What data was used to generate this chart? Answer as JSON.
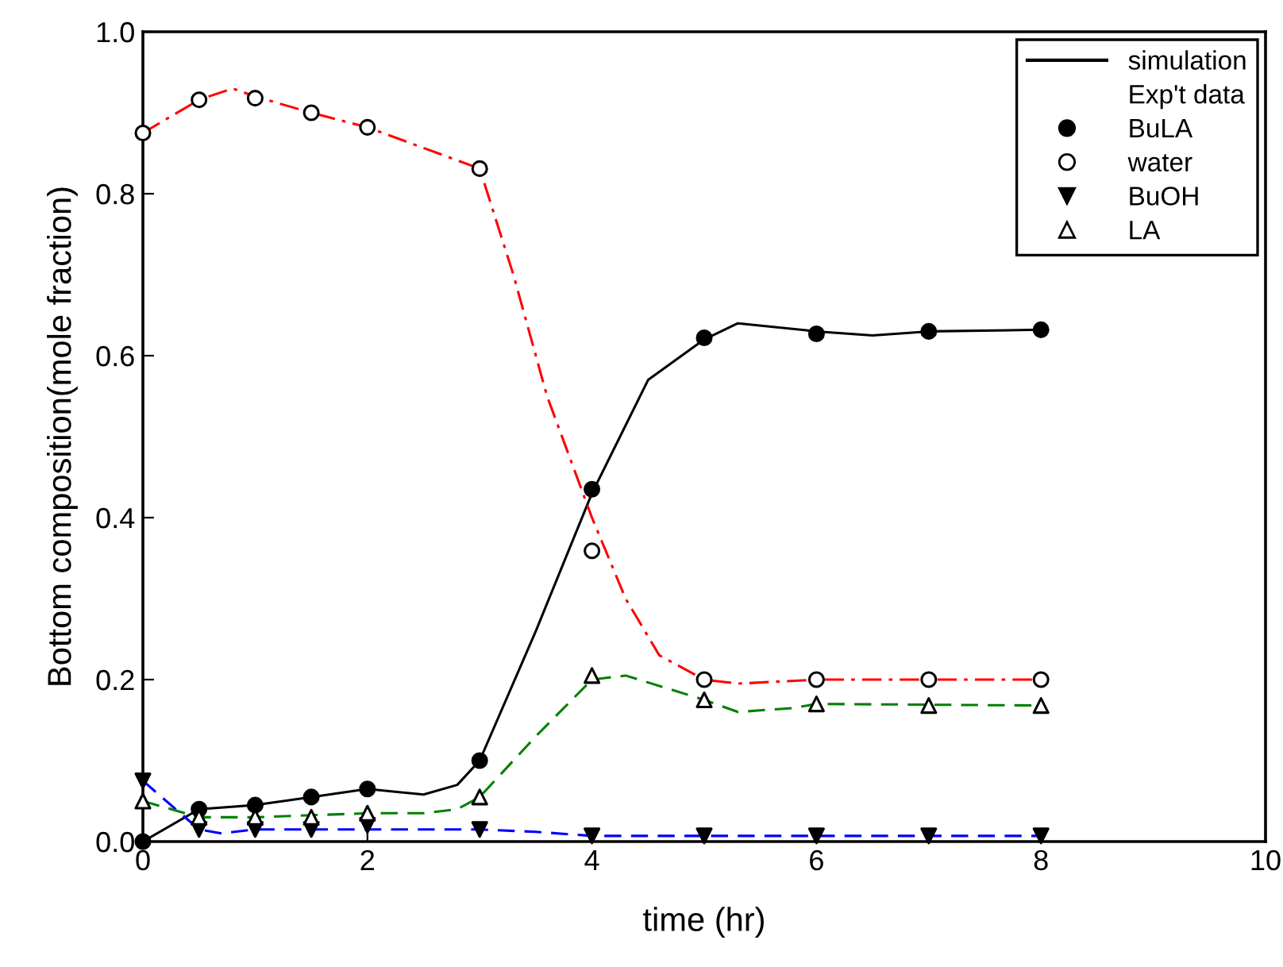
{
  "chart_data": {
    "type": "scatter",
    "xlabel": "time (hr)",
    "ylabel": "Bottom composition(mole fraction)",
    "xlim": [
      0,
      10
    ],
    "xticks": [
      0,
      2,
      4,
      6,
      8,
      10
    ],
    "ylim": [
      0,
      1.0
    ],
    "yticks": [
      {
        "value": 0,
        "label": "0.0"
      },
      {
        "value": 0.2,
        "label": "0.2"
      },
      {
        "value": 0.4,
        "label": "0.4"
      },
      {
        "value": 0.6,
        "label": "0.6"
      },
      {
        "value": 0.8,
        "label": "0.8"
      },
      {
        "value": 1.0,
        "label": "1.0"
      }
    ],
    "grid": false,
    "legend": "top right",
    "annotations": [
      "Exp't data"
    ],
    "series": [
      {
        "type": "line",
        "name": "simulation",
        "color": "#000000",
        "line_style": "solid",
        "marker": "none",
        "x": [
          0,
          0.5,
          1,
          1.5,
          2,
          2.5,
          2.8,
          3,
          3.5,
          4,
          4.5,
          5,
          5.3,
          6,
          6.5,
          7,
          8
        ],
        "values": [
          0,
          0.04,
          0.045,
          0.055,
          0.065,
          0.058,
          0.07,
          0.1,
          0.26,
          0.43,
          0.57,
          0.62,
          0.64,
          0.63,
          0.625,
          0.63,
          0.632
        ]
      },
      {
        "type": "line",
        "color": "#ff0000",
        "line_style": "dashdot",
        "marker": "none",
        "x": [
          0,
          0.5,
          0.8,
          1,
          1.5,
          2,
          3,
          3.3,
          3.6,
          4,
          4.3,
          4.6,
          5,
          5.3,
          6,
          7,
          8
        ],
        "values": [
          0.875,
          0.916,
          0.93,
          0.92,
          0.9,
          0.882,
          0.831,
          0.7,
          0.55,
          0.4,
          0.3,
          0.23,
          0.2,
          0.195,
          0.2,
          0.2,
          0.2
        ]
      },
      {
        "type": "line",
        "color": "#0000ff",
        "line_style": "dashed",
        "marker": "none",
        "x": [
          0,
          0.5,
          0.7,
          1,
          3,
          3.5,
          4,
          8
        ],
        "values": [
          0.075,
          0.015,
          0.01,
          0.015,
          0.015,
          0.012,
          0.007,
          0.007
        ]
      },
      {
        "type": "line",
        "color": "#008000",
        "line_style": "dashed",
        "marker": "none",
        "x": [
          0,
          0.5,
          1,
          2,
          2.5,
          2.8,
          3,
          3.5,
          4,
          4.3,
          5,
          5.3,
          5.8,
          6,
          8
        ],
        "values": [
          0.05,
          0.03,
          0.03,
          0.035,
          0.035,
          0.04,
          0.055,
          0.13,
          0.2,
          0.205,
          0.175,
          0.16,
          0.165,
          0.17,
          0.168
        ]
      },
      {
        "name": "BuLA",
        "color": "#000000",
        "marker": "circle",
        "x": [
          0,
          0.5,
          1,
          1.5,
          2,
          3,
          4,
          5,
          6,
          7,
          8
        ],
        "values": [
          0,
          0.04,
          0.045,
          0.055,
          0.065,
          0.1,
          0.435,
          0.622,
          0.627,
          0.63,
          0.632
        ]
      },
      {
        "name": "water",
        "color": "#ffffff",
        "marker": "circle",
        "x": [
          0,
          0.5,
          1,
          1.5,
          2,
          3,
          4,
          5,
          6,
          7,
          8
        ],
        "values": [
          0.875,
          0.916,
          0.918,
          0.9,
          0.882,
          0.831,
          0.359,
          0.2,
          0.2,
          0.2,
          0.2
        ]
      },
      {
        "name": "BuOH",
        "color": "#000000",
        "marker": "triangle_down",
        "x": [
          0,
          0.5,
          1,
          1.5,
          2,
          3,
          4,
          5,
          6,
          7,
          8
        ],
        "values": [
          0.075,
          0.015,
          0.015,
          0.015,
          0.02,
          0.015,
          0.007,
          0.007,
          0.007,
          0.007,
          0.007
        ]
      },
      {
        "name": "LA",
        "color": "#ffffff",
        "marker": "triangle",
        "x": [
          0,
          0.5,
          1,
          1.5,
          2,
          3,
          4,
          5,
          6,
          7,
          8
        ],
        "values": [
          0.05,
          0.03,
          0.03,
          0.03,
          0.035,
          0.055,
          0.205,
          0.175,
          0.17,
          0.168,
          0.168
        ]
      }
    ]
  }
}
